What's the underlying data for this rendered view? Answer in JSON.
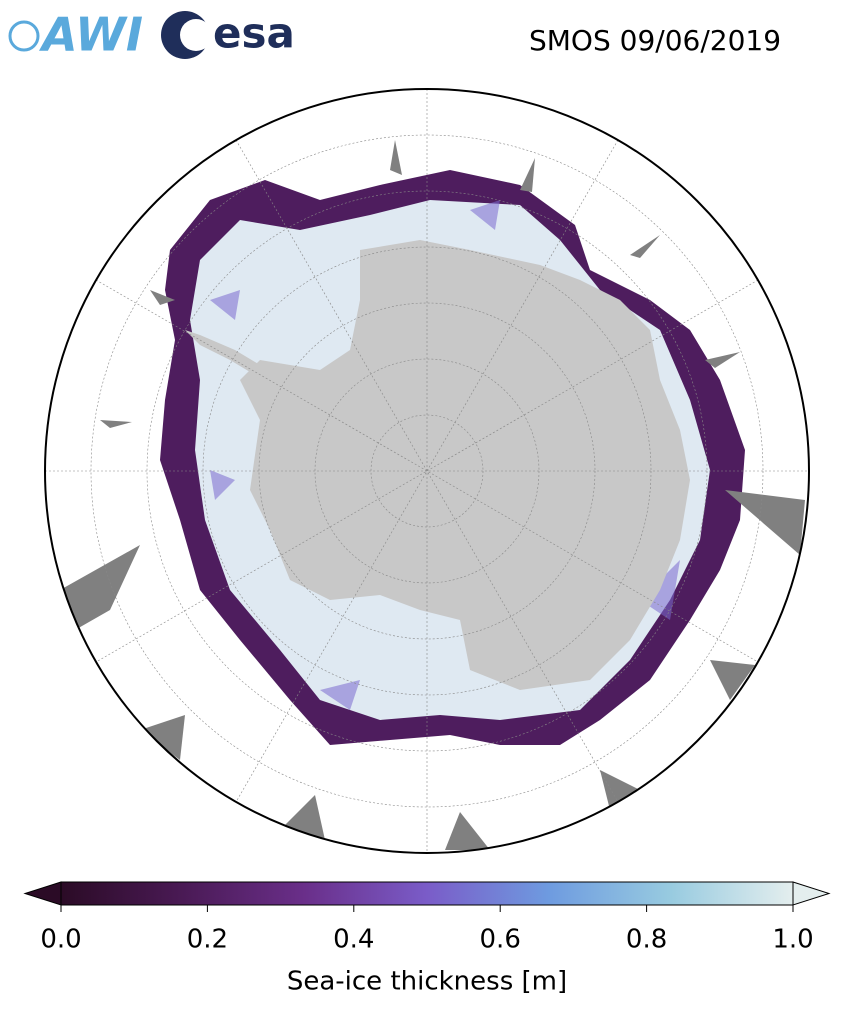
{
  "header": {
    "logos": [
      "AWI",
      "esa"
    ],
    "title": "SMOS 09/06/2019"
  },
  "colorbar": {
    "label": "Sea-ice thickness [m]",
    "lim": [
      0,
      1
    ],
    "ticks": [
      {
        "value": 0,
        "label": "0.0"
      },
      {
        "value": 0.2,
        "label": "0.2"
      },
      {
        "value": 0.4,
        "label": "0.4"
      },
      {
        "value": 0.6,
        "label": "0.6"
      },
      {
        "value": 0.8,
        "label": "0.8"
      },
      {
        "value": 1,
        "label": "1.0"
      }
    ],
    "colors": [
      "#2b0b26",
      "#4a1a55",
      "#6a2f8a",
      "#7a5cc8",
      "#6e9be0",
      "#98cbe0",
      "#e4eeee"
    ]
  }
}
